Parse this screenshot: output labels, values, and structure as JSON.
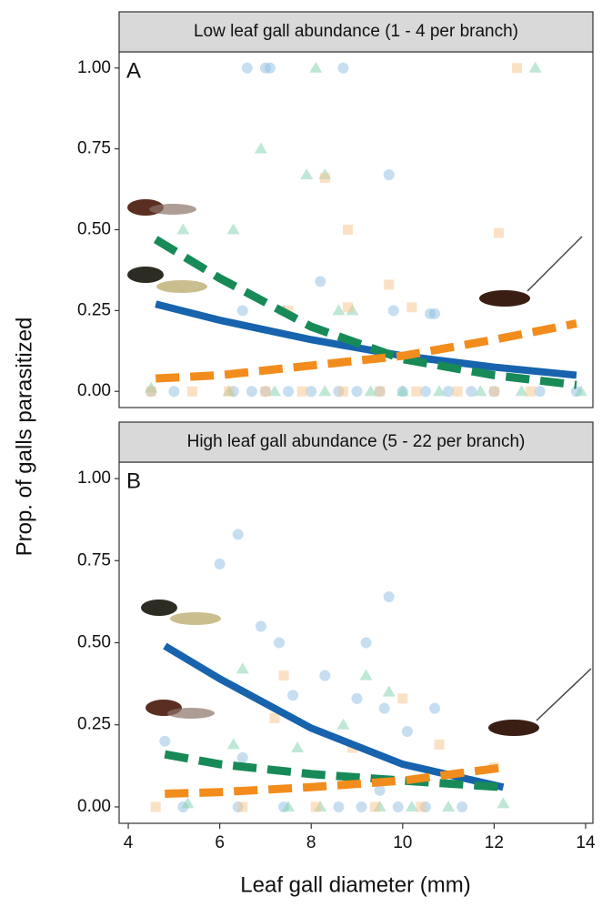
{
  "axes": {
    "xlabel": "Leaf gall diameter (mm)",
    "ylabel": "Prop. of galls parasitized"
  },
  "chart_data": [
    {
      "type": "scatter",
      "panel_label": "A",
      "title": "Low leaf gall abundance (1 - 4 per branch)",
      "xlim": [
        3.8,
        14.16
      ],
      "ylim": [
        -0.05,
        1.05
      ],
      "yticks": [
        {
          "value": 0,
          "label": "0.00"
        },
        {
          "value": 0.25,
          "label": "0.25"
        },
        {
          "value": 0.5,
          "label": "0.50"
        },
        {
          "value": 0.75,
          "label": "0.75"
        },
        {
          "value": 1,
          "label": "1.00"
        }
      ],
      "points": [
        {
          "color": "#8dbde2",
          "marker": "circle",
          "x": [
            6.6,
            7.0,
            7.1,
            8.7,
            9.7,
            8.2,
            9.8,
            10.6,
            10.7,
            6.5,
            4.5,
            5.0,
            6.3,
            6.7,
            7.0,
            7.5,
            8.0,
            8.6,
            9.0,
            9.5,
            10.0,
            10.5,
            11.0,
            11.5,
            12.0,
            13.0,
            13.8
          ],
          "y": [
            1.0,
            1.0,
            1.0,
            1.0,
            0.67,
            0.34,
            0.25,
            0.24,
            0.24,
            0.25,
            0,
            0,
            0,
            0,
            0,
            0,
            0,
            0,
            0,
            0,
            0,
            0,
            0,
            0,
            0,
            0,
            0
          ]
        },
        {
          "color": "#7fcfae",
          "marker": "triangle",
          "x": [
            8.1,
            12.9,
            6.9,
            7.9,
            8.3,
            6.3,
            5.2,
            7.4,
            8.6,
            8.9,
            4.5,
            6.2,
            7.2,
            8.3,
            9.3,
            10.0,
            10.8,
            11.7,
            12.6,
            13.9
          ],
          "y": [
            1.0,
            1.0,
            0.75,
            0.67,
            0.67,
            0.5,
            0.5,
            0.25,
            0.25,
            0.25,
            0.01,
            0,
            0,
            0,
            0,
            0,
            0,
            0,
            0,
            0
          ]
        },
        {
          "color": "#f8c48a",
          "marker": "square",
          "x": [
            12.5,
            8.3,
            8.8,
            12.1,
            9.7,
            10.2,
            8.8,
            7.5,
            4.5,
            5.4,
            6.2,
            7.0,
            7.8,
            8.7,
            9.5,
            10.3,
            11.2,
            12.0,
            12.8
          ],
          "y": [
            1.0,
            0.66,
            0.5,
            0.49,
            0.33,
            0.26,
            0.26,
            0.25,
            0,
            0,
            0,
            0,
            0,
            0,
            0,
            0,
            0,
            0,
            0
          ]
        }
      ],
      "fits": [
        {
          "color": "#1763ad",
          "dash": "solid",
          "x": [
            4.6,
            6,
            8,
            10,
            12,
            13.8
          ],
          "y": [
            0.27,
            0.22,
            0.16,
            0.11,
            0.075,
            0.05
          ]
        },
        {
          "color": "#178a58",
          "dash": "dashed",
          "x": [
            4.6,
            6,
            8,
            10,
            12,
            13.8
          ],
          "y": [
            0.47,
            0.35,
            0.2,
            0.1,
            0.05,
            0.02
          ]
        },
        {
          "color": "#f28c1c",
          "dash": "dashed",
          "x": [
            4.6,
            6,
            8,
            10,
            12,
            13.8
          ],
          "y": [
            0.04,
            0.05,
            0.08,
            0.11,
            0.16,
            0.21
          ]
        }
      ]
    },
    {
      "type": "scatter",
      "panel_label": "B",
      "title": "High leaf gall abundance (5 - 22 per branch)",
      "xlim": [
        3.8,
        14.16
      ],
      "ylim": [
        -0.05,
        1.05
      ],
      "xticks": [
        4,
        6,
        8,
        10,
        12,
        14
      ],
      "yticks": [
        {
          "value": 0,
          "label": "0.00"
        },
        {
          "value": 0.25,
          "label": "0.25"
        },
        {
          "value": 0.5,
          "label": "0.50"
        },
        {
          "value": 0.75,
          "label": "0.75"
        },
        {
          "value": 1,
          "label": "1.00"
        }
      ],
      "points": [
        {
          "color": "#8dbde2",
          "marker": "circle",
          "x": [
            6.0,
            6.4,
            6.9,
            7.3,
            8.3,
            9.2,
            9.7,
            7.6,
            9.0,
            9.6,
            10.7,
            6.5,
            9.5,
            10.1,
            4.8,
            5.2,
            6.4,
            7.4,
            8.6,
            9.1,
            9.9,
            10.5,
            11.3
          ],
          "y": [
            0.74,
            0.83,
            0.55,
            0.5,
            0.4,
            0.5,
            0.64,
            0.34,
            0.33,
            0.3,
            0.3,
            0.15,
            0.05,
            0.23,
            0.2,
            0,
            0,
            0,
            0,
            0,
            0,
            0,
            0
          ]
        },
        {
          "color": "#7fcfae",
          "marker": "triangle",
          "x": [
            6.5,
            9.2,
            6.3,
            8.7,
            9.7,
            7.7,
            5.3,
            12.2,
            7.5,
            8.2,
            9.5,
            10.2,
            11.0
          ],
          "y": [
            0.42,
            0.4,
            0.19,
            0.25,
            0.35,
            0.18,
            0.01,
            0.01,
            0,
            0,
            0,
            0,
            0
          ]
        },
        {
          "color": "#f8c48a",
          "marker": "square",
          "x": [
            7.4,
            10.0,
            8.9,
            7.2,
            10.8,
            4.6,
            12.0,
            6.5,
            8.1,
            9.4,
            10.4
          ],
          "y": [
            0.4,
            0.33,
            0.18,
            0.27,
            0.19,
            0,
            0.12,
            0,
            0,
            0,
            0
          ]
        }
      ],
      "fits": [
        {
          "color": "#1763ad",
          "dash": "solid",
          "x": [
            4.8,
            6,
            8,
            10,
            12.2
          ],
          "y": [
            0.49,
            0.39,
            0.24,
            0.13,
            0.06
          ]
        },
        {
          "color": "#178a58",
          "dash": "dashed",
          "x": [
            4.8,
            6,
            8,
            10,
            12.2
          ],
          "y": [
            0.16,
            0.13,
            0.1,
            0.08,
            0.06
          ]
        },
        {
          "color": "#f28c1c",
          "dash": "dashed",
          "x": [
            4.8,
            6,
            8,
            10,
            12.2
          ],
          "y": [
            0.04,
            0.045,
            0.06,
            0.08,
            0.12
          ]
        }
      ]
    }
  ]
}
